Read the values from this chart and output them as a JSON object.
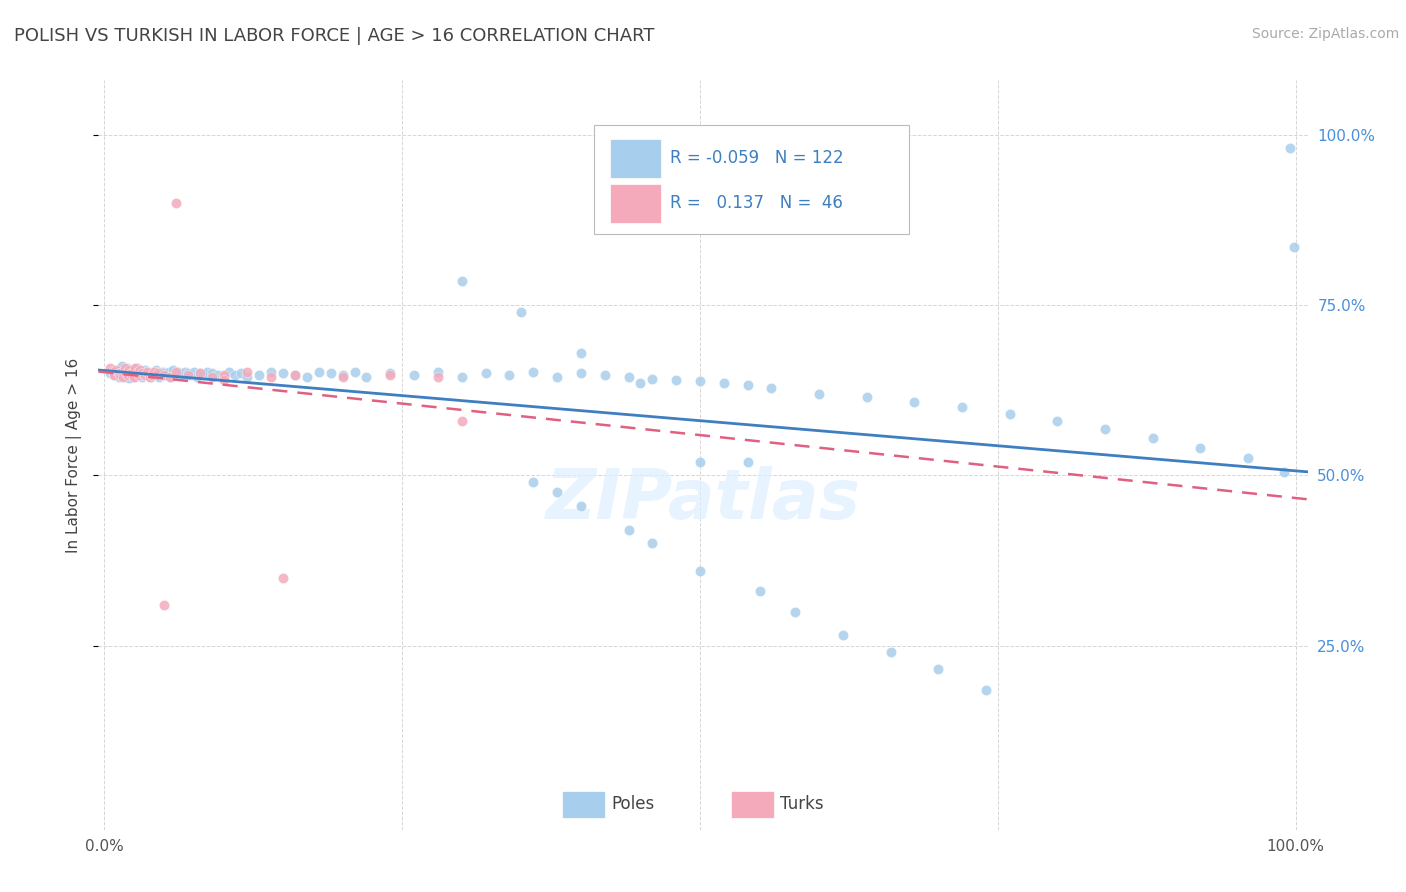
{
  "title": "POLISH VS TURKISH IN LABOR FORCE | AGE > 16 CORRELATION CHART",
  "source_text": "Source: ZipAtlas.com",
  "ylabel": "In Labor Force | Age > 16",
  "watermark": "ZIPatlas",
  "blue_color": "#A8CEED",
  "pink_color": "#F4AABB",
  "blue_line_color": "#3E7EC1",
  "pink_line_color": "#E06080",
  "legend_R1": "-0.059",
  "legend_N1": "122",
  "legend_R2": "0.137",
  "legend_N2": "46",
  "title_color": "#444444",
  "right_tick_color": "#4A90D9",
  "grid_color": "#CCCCCC",
  "blue_x": [
    0.005,
    0.008,
    0.01,
    0.012,
    0.013,
    0.015,
    0.016,
    0.017,
    0.018,
    0.019,
    0.02,
    0.021,
    0.022,
    0.023,
    0.024,
    0.025,
    0.026,
    0.027,
    0.028,
    0.029,
    0.03,
    0.031,
    0.032,
    0.033,
    0.034,
    0.035,
    0.036,
    0.037,
    0.038,
    0.039,
    0.04,
    0.041,
    0.042,
    0.043,
    0.044,
    0.045,
    0.046,
    0.047,
    0.048,
    0.049,
    0.05,
    0.052,
    0.054,
    0.056,
    0.058,
    0.06,
    0.062,
    0.064,
    0.066,
    0.068,
    0.07,
    0.072,
    0.075,
    0.078,
    0.08,
    0.083,
    0.086,
    0.09,
    0.095,
    0.1,
    0.105,
    0.11,
    0.115,
    0.12,
    0.13,
    0.14,
    0.15,
    0.16,
    0.17,
    0.18,
    0.19,
    0.2,
    0.21,
    0.22,
    0.24,
    0.26,
    0.28,
    0.3,
    0.32,
    0.34,
    0.36,
    0.38,
    0.4,
    0.42,
    0.44,
    0.46,
    0.48,
    0.5,
    0.52,
    0.54,
    0.56,
    0.6,
    0.64,
    0.68,
    0.72,
    0.76,
    0.8,
    0.84,
    0.88,
    0.92,
    0.96,
    0.99,
    0.995,
    0.999,
    0.3,
    0.35,
    0.4,
    0.45,
    0.5,
    0.54,
    0.36,
    0.38,
    0.4,
    0.44,
    0.46,
    0.5,
    0.55,
    0.58,
    0.62,
    0.66,
    0.7,
    0.74
  ],
  "blue_y": [
    0.65,
    0.648,
    0.652,
    0.645,
    0.655,
    0.66,
    0.648,
    0.652,
    0.645,
    0.658,
    0.65,
    0.643,
    0.655,
    0.648,
    0.652,
    0.65,
    0.645,
    0.658,
    0.65,
    0.652,
    0.648,
    0.652,
    0.645,
    0.648,
    0.655,
    0.65,
    0.652,
    0.648,
    0.65,
    0.645,
    0.652,
    0.648,
    0.65,
    0.655,
    0.648,
    0.652,
    0.645,
    0.65,
    0.648,
    0.652,
    0.65,
    0.648,
    0.652,
    0.645,
    0.655,
    0.648,
    0.652,
    0.65,
    0.648,
    0.652,
    0.65,
    0.648,
    0.652,
    0.645,
    0.65,
    0.648,
    0.652,
    0.65,
    0.648,
    0.645,
    0.652,
    0.648,
    0.65,
    0.645,
    0.648,
    0.652,
    0.65,
    0.648,
    0.645,
    0.652,
    0.65,
    0.648,
    0.652,
    0.645,
    0.65,
    0.648,
    0.652,
    0.645,
    0.65,
    0.648,
    0.652,
    0.645,
    0.65,
    0.648,
    0.645,
    0.642,
    0.64,
    0.638,
    0.635,
    0.632,
    0.628,
    0.62,
    0.615,
    0.608,
    0.6,
    0.59,
    0.58,
    0.568,
    0.555,
    0.54,
    0.525,
    0.505,
    0.98,
    0.835,
    0.785,
    0.74,
    0.68,
    0.635,
    0.52,
    0.52,
    0.49,
    0.475,
    0.455,
    0.42,
    0.4,
    0.36,
    0.33,
    0.3,
    0.265,
    0.24,
    0.215,
    0.185
  ],
  "pink_x": [
    0.005,
    0.007,
    0.008,
    0.01,
    0.012,
    0.013,
    0.015,
    0.016,
    0.017,
    0.018,
    0.02,
    0.021,
    0.022,
    0.023,
    0.024,
    0.025,
    0.026,
    0.027,
    0.028,
    0.029,
    0.03,
    0.032,
    0.034,
    0.036,
    0.038,
    0.04,
    0.042,
    0.045,
    0.05,
    0.055,
    0.06,
    0.07,
    0.08,
    0.09,
    0.1,
    0.12,
    0.14,
    0.16,
    0.2,
    0.24,
    0.28,
    0.06,
    0.1,
    0.3,
    0.15,
    0.05
  ],
  "pink_y": [
    0.658,
    0.652,
    0.648,
    0.655,
    0.65,
    0.648,
    0.652,
    0.645,
    0.658,
    0.65,
    0.648,
    0.655,
    0.65,
    0.648,
    0.652,
    0.645,
    0.658,
    0.65,
    0.652,
    0.648,
    0.655,
    0.65,
    0.648,
    0.652,
    0.645,
    0.648,
    0.652,
    0.65,
    0.648,
    0.645,
    0.652,
    0.648,
    0.65,
    0.645,
    0.648,
    0.652,
    0.645,
    0.648,
    0.645,
    0.648,
    0.645,
    0.9,
    0.64,
    0.58,
    0.35,
    0.31
  ]
}
